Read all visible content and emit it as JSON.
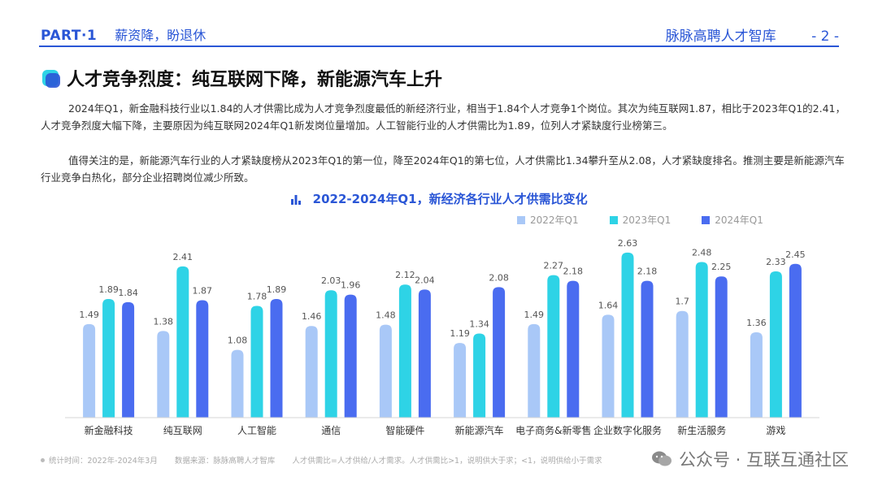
{
  "header": {
    "part": "PART·1",
    "subtitle": "薪资降，盼退休",
    "brand": "脉脉高聘人才智库",
    "page_number": "- 2 -"
  },
  "section": {
    "title": "人才竞争烈度：纯互联网下降，新能源汽车上升"
  },
  "paragraphs": [
    "2024年Q1，新金融科技行业以1.84的人才供需比成为人才竞争烈度最低的新经济行业，相当于1.84个人才竞争1个岗位。其次为纯互联网1.87，相比于2023年Q1的2.41，人才竞争烈度大幅下降，主要原因为纯互联网2024年Q1新发岗位量增加。人工智能行业的人才供需比为1.89，位列人才紧缺度行业榜第三。",
    "值得关注的是，新能源汽车行业的人才紧缺度榜从2023年Q1的第一位，降至2024年Q1的第七位，人才供需比1.34攀升至从2.08，人才紧缺度排名。推测主要是新能源汽车行业竞争白热化，部分企业招聘岗位减少所致。"
  ],
  "colors": {
    "accent": "#2a56d6",
    "series_2022": "#a9c8f7",
    "series_2023": "#2ed3e6",
    "series_2024": "#4a6cf0"
  },
  "chart_data": {
    "type": "bar",
    "title": "2022-2024年Q1，新经济各行业人才供需比变化",
    "categories": [
      "新金融科技",
      "纯互联网",
      "人工智能",
      "通信",
      "智能硬件",
      "新能源汽车",
      "电子商务&新零售",
      "企业数字化服务",
      "新生活服务",
      "游戏"
    ],
    "series": [
      {
        "name": "2022年Q1",
        "values": [
          1.49,
          1.38,
          1.08,
          1.46,
          1.48,
          1.19,
          1.49,
          1.64,
          1.7,
          1.36
        ],
        "labels": [
          "1.49",
          "1.38",
          "1.08",
          "1.46",
          "1.48",
          "1.19",
          "1.49",
          "1.64",
          "1.7",
          "1.36"
        ]
      },
      {
        "name": "2023年Q1",
        "values": [
          1.89,
          2.41,
          1.78,
          2.03,
          2.12,
          1.34,
          2.27,
          2.63,
          2.48,
          2.33
        ],
        "labels": [
          "1.89",
          "2.41",
          "1.78",
          "2.03",
          "2.12",
          "1.34",
          "2.27",
          "2.63",
          "2.48",
          "2.33"
        ]
      },
      {
        "name": "2024年Q1",
        "values": [
          1.84,
          1.87,
          1.89,
          1.96,
          2.04,
          2.08,
          2.18,
          2.18,
          2.25,
          2.45
        ],
        "labels": [
          "1.84",
          "1.87",
          "1.89",
          "1.96",
          "2.04",
          "2.08",
          "2.18",
          "2.18",
          "2.25",
          "2.45"
        ]
      }
    ],
    "xlabel": "",
    "ylabel": "",
    "ylim": [
      0,
      2.9
    ],
    "grid": false,
    "legend": "top-right"
  },
  "footer": {
    "stat_period": "统计时间：2022年-2024年3月",
    "source": "数据来源：脉脉高聘人才智库",
    "note": "人才供需比=人才供给/人才需求。人才供需比>1，说明供大于求；<1，说明供给小于需求"
  },
  "watermark": {
    "text": "公众号 · 互联互通社区"
  }
}
